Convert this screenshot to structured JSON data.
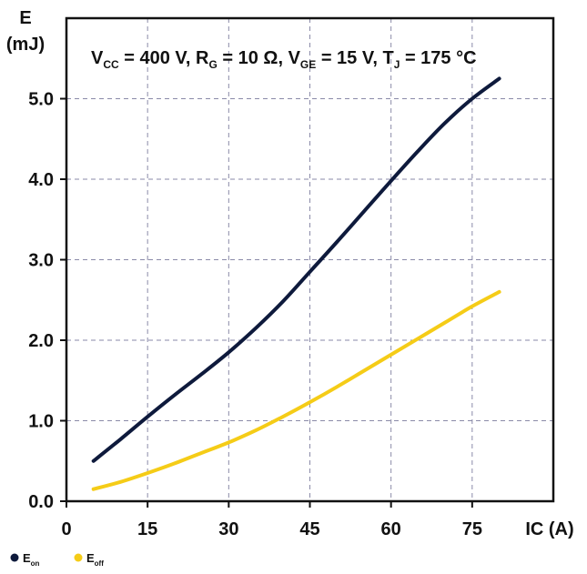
{
  "chart_data": {
    "type": "line",
    "conditions": [
      {
        "base": "V",
        "sub": "CC",
        "rest": " = 400 V, "
      },
      {
        "base": "R",
        "sub": "G",
        "rest": " = 10 Ω, "
      },
      {
        "base": "V",
        "sub": "GE",
        "rest": " = 15 V, "
      },
      {
        "base": "T",
        "sub": "J",
        "rest": " = 175 °C"
      }
    ],
    "xlabel": "IC (A)",
    "ylabel_line1": "E",
    "ylabel_line2": "(mJ)",
    "xlim": [
      0,
      90
    ],
    "ylim": [
      0,
      6
    ],
    "xticks": [
      0,
      15,
      30,
      45,
      60,
      75
    ],
    "xtick_labels": [
      "0",
      "15",
      "30",
      "45",
      "60",
      "75"
    ],
    "yticks": [
      0,
      1,
      2,
      3,
      4,
      5
    ],
    "ytick_labels": [
      "0.0",
      "1.0",
      "2.0",
      "3.0",
      "4.0",
      "5.0"
    ],
    "grid": true,
    "legend_position": "bottom-left",
    "series": [
      {
        "name_base": "E",
        "name_sub": "on",
        "color": "#0e1a3c",
        "x": [
          5,
          10,
          15,
          20,
          25,
          30,
          35,
          40,
          45,
          50,
          55,
          60,
          65,
          70,
          75,
          80
        ],
        "y": [
          0.5,
          0.77,
          1.05,
          1.32,
          1.58,
          1.85,
          2.15,
          2.48,
          2.85,
          3.22,
          3.6,
          3.98,
          4.35,
          4.7,
          5.0,
          5.25
        ]
      },
      {
        "name_base": "E",
        "name_sub": "off",
        "color": "#f5cc17",
        "x": [
          5,
          10,
          15,
          20,
          25,
          30,
          35,
          40,
          45,
          50,
          55,
          60,
          65,
          70,
          75,
          80
        ],
        "y": [
          0.15,
          0.24,
          0.35,
          0.47,
          0.6,
          0.73,
          0.88,
          1.05,
          1.23,
          1.42,
          1.62,
          1.82,
          2.02,
          2.22,
          2.42,
          2.6
        ]
      }
    ]
  }
}
